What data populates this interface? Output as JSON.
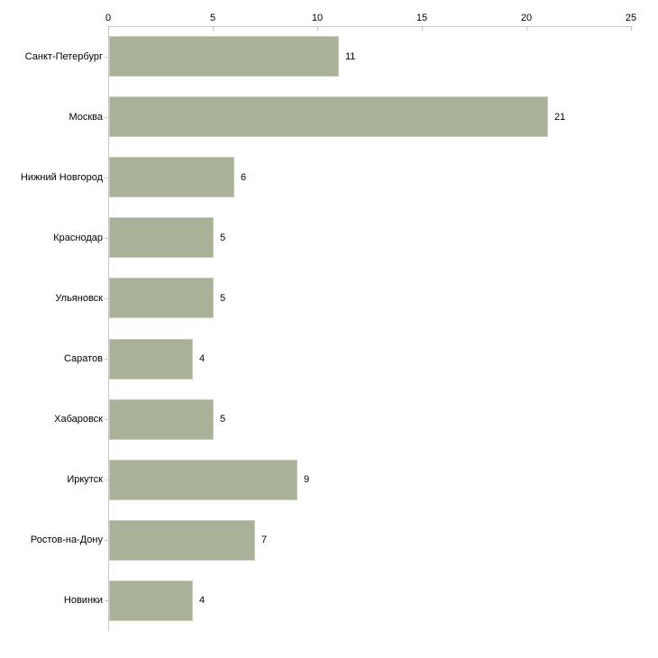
{
  "chart_data": {
    "type": "bar",
    "orientation": "horizontal",
    "title": "",
    "xlabel": "",
    "ylabel": "",
    "categories": [
      "Санкт-Петербург",
      "Москва",
      "Нижний Новгород",
      "Краснодар",
      "Ульяновск",
      "Саратов",
      "Хабаровск",
      "Иркутск",
      "Ростов-на-Дону",
      "Новинки"
    ],
    "values": [
      11,
      21,
      6,
      5,
      5,
      4,
      5,
      9,
      7,
      4
    ],
    "x_tick_labels": [
      "0",
      "5",
      "10",
      "15",
      "20",
      "25"
    ],
    "x_tick_values": [
      0,
      5,
      10,
      15,
      20,
      25
    ],
    "xlim": [
      0,
      25
    ],
    "grid": false,
    "legend": false,
    "x_axis_position": "top",
    "colors": {
      "bar_fill": "#a9b299",
      "bar_edge_highlight": "#c6ccb6",
      "axis_line": "#c9c9c9",
      "x_tick_mark": "#bfc49c",
      "y_tick_mark": "#ced2b0",
      "label_text": "#000000",
      "background": "#ffffff"
    }
  }
}
